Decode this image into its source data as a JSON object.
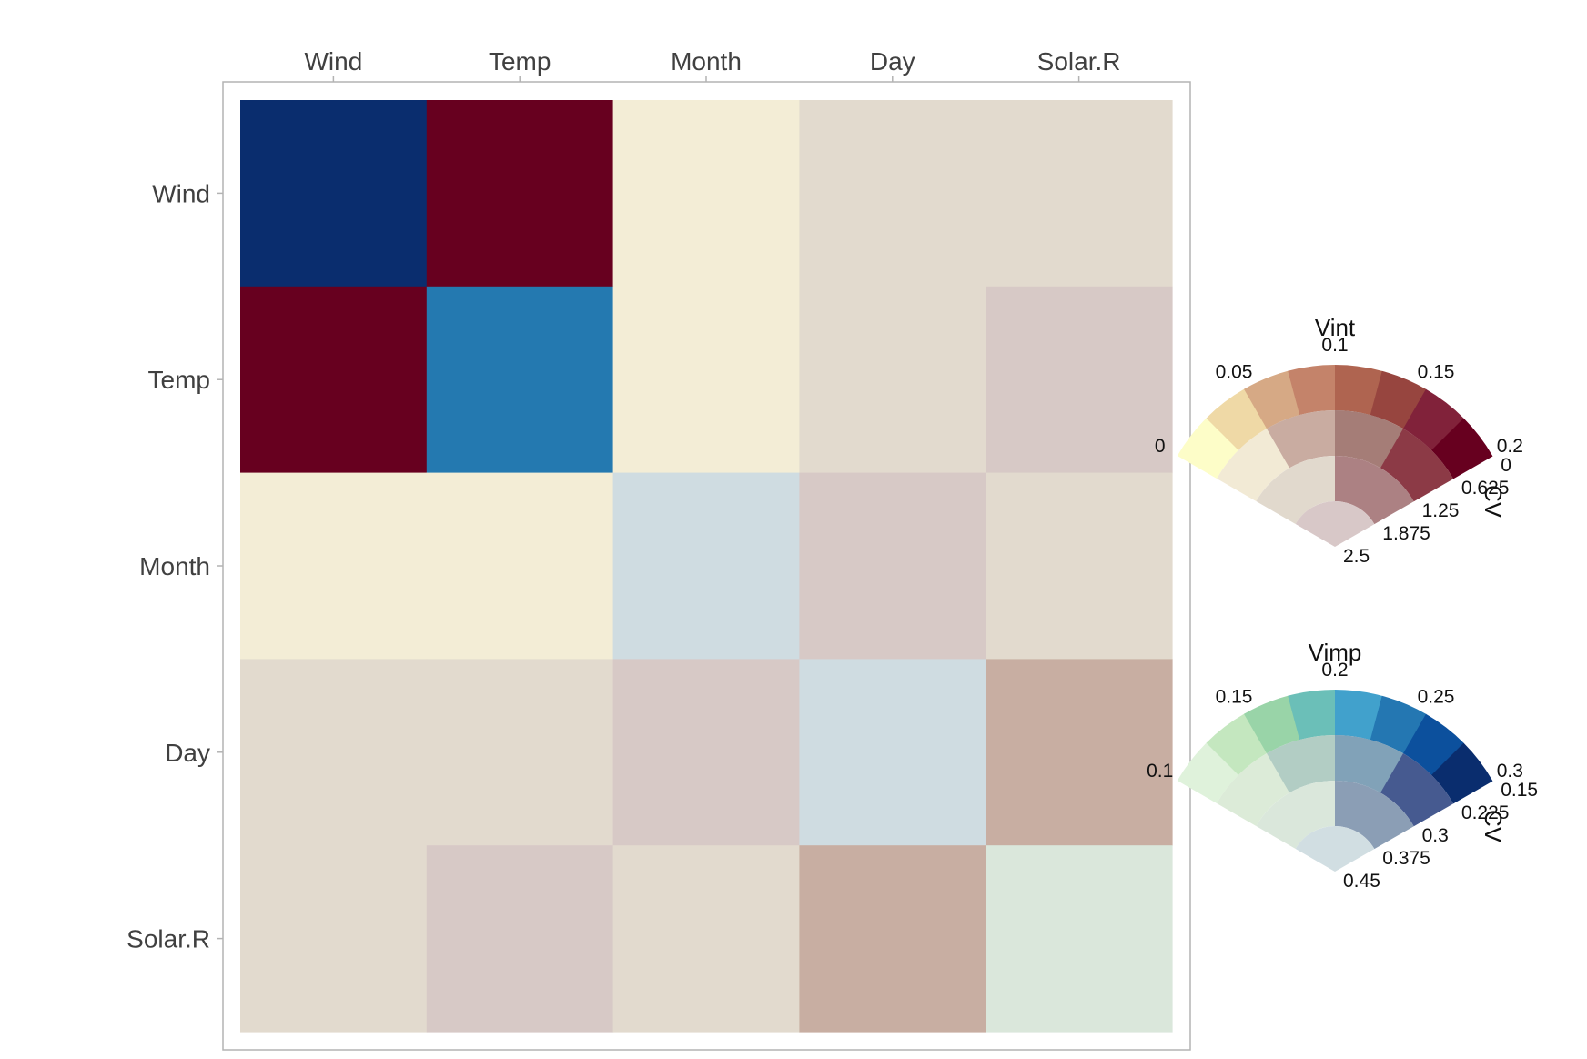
{
  "chart_data": {
    "type": "heatmap",
    "title": "",
    "xlabel": "",
    "ylabel": "",
    "x_categories": [
      "Wind",
      "Temp",
      "Month",
      "Day",
      "Solar.R"
    ],
    "y_categories": [
      "Wind",
      "Temp",
      "Month",
      "Day",
      "Solar.R"
    ],
    "x_axis_position": "top",
    "grid": false,
    "cells": [
      [
        {
          "fill": "#0A2D6E",
          "kind": "vimp",
          "value": 0.3,
          "cv": 0.15
        },
        {
          "fill": "#67001F",
          "kind": "vint",
          "value": 0.2,
          "cv": 0.0
        },
        {
          "fill": "#F3EDD6",
          "kind": "vint",
          "value": 0.01,
          "cv": 0.7
        },
        {
          "fill": "#E2DACE",
          "kind": "vint",
          "value": 0.01,
          "cv": 1.6
        },
        {
          "fill": "#E2DACE",
          "kind": "vint",
          "value": 0.01,
          "cv": 1.6
        }
      ],
      [
        {
          "fill": "#67001F",
          "kind": "vint",
          "value": 0.2,
          "cv": 0.0
        },
        {
          "fill": "#2479B0",
          "kind": "vimp",
          "value": 0.24,
          "cv": 0.15
        },
        {
          "fill": "#F3EDD6",
          "kind": "vint",
          "value": 0.01,
          "cv": 0.7
        },
        {
          "fill": "#E2DACE",
          "kind": "vint",
          "value": 0.01,
          "cv": 1.6
        },
        {
          "fill": "#D7C9C6",
          "kind": "vint",
          "value": 0.06,
          "cv": 2.3
        }
      ],
      [
        {
          "fill": "#F3EDD6",
          "kind": "vint",
          "value": 0.01,
          "cv": 0.7
        },
        {
          "fill": "#F3EDD6",
          "kind": "vint",
          "value": 0.01,
          "cv": 0.7
        },
        {
          "fill": "#CFDCE1",
          "kind": "vimp",
          "value": 0.2,
          "cv": 0.43
        },
        {
          "fill": "#D7C9C6",
          "kind": "vint",
          "value": 0.06,
          "cv": 2.3
        },
        {
          "fill": "#E2DACE",
          "kind": "vint",
          "value": 0.01,
          "cv": 1.6
        }
      ],
      [
        {
          "fill": "#E2DACE",
          "kind": "vint",
          "value": 0.01,
          "cv": 1.6
        },
        {
          "fill": "#E2DACE",
          "kind": "vint",
          "value": 0.01,
          "cv": 1.6
        },
        {
          "fill": "#D7C9C6",
          "kind": "vint",
          "value": 0.06,
          "cv": 2.3
        },
        {
          "fill": "#CFDCE1",
          "kind": "vimp",
          "value": 0.2,
          "cv": 0.43
        },
        {
          "fill": "#C8AEA2",
          "kind": "vint",
          "value": 0.06,
          "cv": 1.6
        }
      ],
      [
        {
          "fill": "#E2DACE",
          "kind": "vint",
          "value": 0.01,
          "cv": 1.6
        },
        {
          "fill": "#D7C9C6",
          "kind": "vint",
          "value": 0.06,
          "cv": 2.3
        },
        {
          "fill": "#E2DACE",
          "kind": "vint",
          "value": 0.01,
          "cv": 1.6
        },
        {
          "fill": "#C8AEA2",
          "kind": "vint",
          "value": 0.06,
          "cv": 1.6
        },
        {
          "fill": "#DAE7DB",
          "kind": "vimp",
          "value": 0.11,
          "cv": 0.4
        }
      ]
    ],
    "legends": [
      {
        "title": "Vint",
        "axis_title": "CV",
        "value_ticks": [
          "0",
          "0.05",
          "0.1",
          "0.15",
          "0.2"
        ],
        "cv_ticks": [
          "0",
          "0.625",
          "1.25",
          "1.875",
          "2.5"
        ],
        "rings": [
          [
            "#FDFDC8",
            "#EFD9A6",
            "#D6A985",
            "#C4836A",
            "#AF6450",
            "#97453F",
            "#81223A",
            "#67001F"
          ],
          [
            "#F2EAD5",
            "#C9ACA1",
            "#A57D77",
            "#8C3A46"
          ],
          [
            "#E1D9CD",
            "#AC8183"
          ],
          [
            "#D8C8C8"
          ]
        ]
      },
      {
        "title": "Vimp",
        "axis_title": "CV",
        "value_ticks": [
          "0.1",
          "0.15",
          "0.2",
          "0.25",
          "0.3"
        ],
        "cv_ticks": [
          "0.15",
          "0.225",
          "0.3",
          "0.375",
          "0.45"
        ],
        "rings": [
          [
            "#DFF2DB",
            "#C4E7BF",
            "#99D4A8",
            "#6BBFB8",
            "#41A1CC",
            "#2477B2",
            "#0C509D",
            "#0A2D6E"
          ],
          [
            "#DCEBD8",
            "#B2CDC4",
            "#81A2B8",
            "#465A90"
          ],
          [
            "#DAE7DB",
            "#8B9EB5"
          ],
          [
            "#D1DEE2"
          ]
        ]
      }
    ]
  }
}
